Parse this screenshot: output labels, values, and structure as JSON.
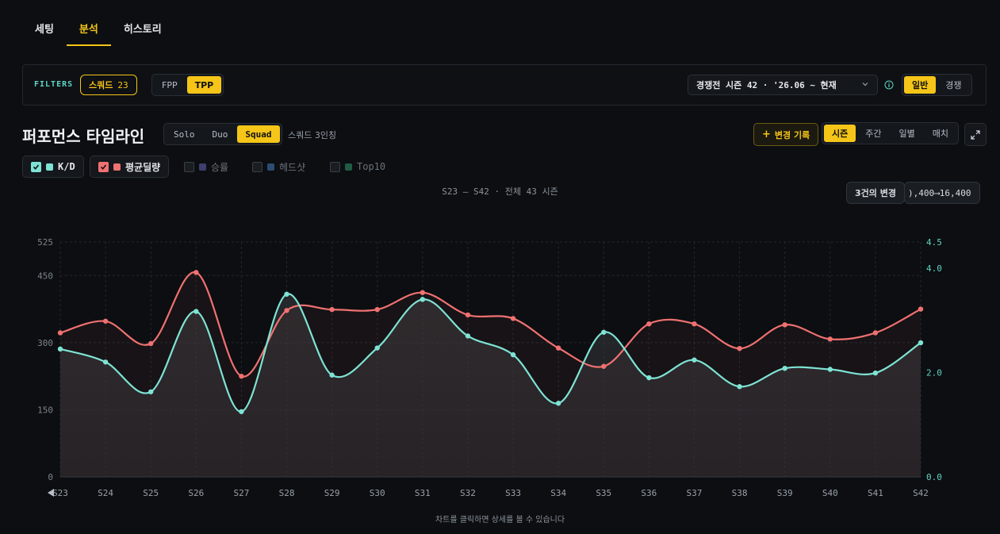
{
  "tabs": [
    {
      "label": "세팅",
      "active": false
    },
    {
      "label": "분석",
      "active": true
    },
    {
      "label": "히스토리",
      "active": false
    }
  ],
  "filters": {
    "label": "FILTERS",
    "squad_chip": {
      "label": "스쿼드",
      "count": "23"
    },
    "perspective": [
      {
        "label": "FPP",
        "on": false
      },
      {
        "label": "TPP",
        "on": true
      }
    ],
    "season_select": "경쟁전 시즌 42 · '26.06 ~ 현재",
    "mode": [
      {
        "label": "일반",
        "on": true
      },
      {
        "label": "경쟁",
        "on": false
      }
    ]
  },
  "timeline": {
    "title": "퍼포먼스 타임라인",
    "team_modes": [
      {
        "label": "Solo",
        "on": false
      },
      {
        "label": "Duo",
        "on": false
      },
      {
        "label": "Squad",
        "on": true
      }
    ],
    "squad_note": "스쿼드 3인칭",
    "change_log_button": "변경 기록",
    "granularity": [
      {
        "label": "시즌",
        "on": true
      },
      {
        "label": "주간",
        "on": false
      },
      {
        "label": "일별",
        "on": false
      },
      {
        "label": "매치",
        "on": false
      }
    ]
  },
  "legend": [
    {
      "label": "K/D",
      "on": true,
      "color": "#7ee3d4"
    },
    {
      "label": "평균딜량",
      "on": true,
      "color": "#f07171"
    },
    {
      "label": "승률",
      "on": false,
      "color": "#3d3f6e"
    },
    {
      "label": "헤드샷",
      "on": false,
      "color": "#2b4d73"
    },
    {
      "label": "Top10",
      "on": false,
      "color": "#1f5c45"
    }
  ],
  "chart_subtitle": "S23 – S42 · 전체 43 시즌",
  "tooltips": {
    "changes": "3건의 변경",
    "value_change": "),400⟶16,400"
  },
  "footer_note": "차트를 클릭하면 상세를 볼 수 있습니다",
  "colors": {
    "accent": "#f5c518",
    "kd": "#7ee3d4",
    "damage": "#f07171"
  },
  "chart_data": {
    "type": "line",
    "categories": [
      "S23",
      "S24",
      "S25",
      "S26",
      "S27",
      "S28",
      "S29",
      "S30",
      "S31",
      "S32",
      "S33",
      "S34",
      "S35",
      "S36",
      "S37",
      "S38",
      "S39",
      "S40",
      "S41",
      "S42"
    ],
    "y_left": {
      "ticks": [
        0,
        150,
        300,
        450,
        525
      ],
      "ylim": [
        0,
        525
      ]
    },
    "y_right": {
      "ticks": [
        "0.0",
        "2.0",
        "4.0",
        "4.5"
      ],
      "ylim": [
        0,
        4.5
      ]
    },
    "series": [
      {
        "name": "평균딜량",
        "axis": "left",
        "color": "#f07171",
        "values": [
          322,
          348,
          298,
          457,
          225,
          372,
          374,
          374,
          412,
          362,
          354,
          288,
          247,
          342,
          342,
          287,
          340,
          308,
          322,
          375
        ]
      },
      {
        "name": "K/D",
        "axis": "right",
        "color": "#7ee3d4",
        "values": [
          2.45,
          2.2,
          1.63,
          3.17,
          1.25,
          3.5,
          1.95,
          2.47,
          3.4,
          2.7,
          2.34,
          1.41,
          2.77,
          1.9,
          2.24,
          1.73,
          2.08,
          2.06,
          1.99,
          2.57
        ]
      }
    ],
    "grid": true
  }
}
